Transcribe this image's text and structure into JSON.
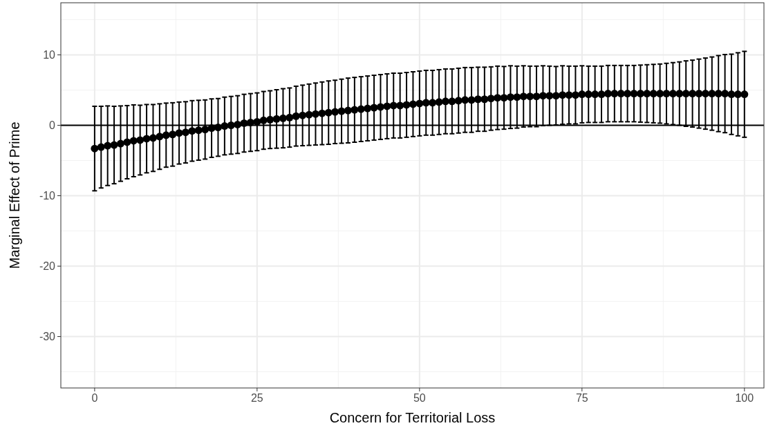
{
  "chart_data": {
    "type": "scatter",
    "xlabel": "Concern for Territorial Loss",
    "ylabel": "Marginal Effect of Prime",
    "xlim": [
      -5.2,
      103
    ],
    "xticks": [
      0,
      25,
      50,
      75,
      100
    ],
    "ylim": [
      -37.3,
      17.4
    ],
    "yticks": [
      -30,
      -20,
      -10,
      0,
      10
    ],
    "grid": true,
    "marker": "circle",
    "ref_lines": [
      {
        "axis": "y",
        "value": 0,
        "color": "#000000"
      }
    ],
    "series": [
      {
        "color": "#000000",
        "x": [
          0,
          1,
          2,
          3,
          4,
          5,
          6,
          7,
          8,
          9,
          10,
          11,
          12,
          13,
          14,
          15,
          16,
          17,
          18,
          19,
          20,
          21,
          22,
          23,
          24,
          25,
          26,
          27,
          28,
          29,
          30,
          31,
          32,
          33,
          34,
          35,
          36,
          37,
          38,
          39,
          40,
          41,
          42,
          43,
          44,
          45,
          46,
          47,
          48,
          49,
          50,
          51,
          52,
          53,
          54,
          55,
          56,
          57,
          58,
          59,
          60,
          61,
          62,
          63,
          64,
          65,
          66,
          67,
          68,
          69,
          70,
          71,
          72,
          73,
          74,
          75,
          76,
          77,
          78,
          79,
          80,
          81,
          82,
          83,
          84,
          85,
          86,
          87,
          88,
          89,
          90,
          91,
          92,
          93,
          94,
          95,
          96,
          97,
          98,
          99,
          100
        ],
        "values": [
          -3.3,
          -3.1,
          -2.9,
          -2.8,
          -2.6,
          -2.4,
          -2.2,
          -2.1,
          -1.9,
          -1.8,
          -1.6,
          -1.4,
          -1.3,
          -1.1,
          -1.0,
          -0.8,
          -0.7,
          -0.6,
          -0.4,
          -0.3,
          -0.1,
          0.0,
          0.1,
          0.3,
          0.4,
          0.5,
          0.7,
          0.8,
          0.9,
          1.0,
          1.1,
          1.3,
          1.4,
          1.5,
          1.6,
          1.7,
          1.8,
          1.9,
          2.0,
          2.1,
          2.2,
          2.3,
          2.4,
          2.5,
          2.6,
          2.7,
          2.8,
          2.8,
          2.9,
          3.0,
          3.1,
          3.2,
          3.2,
          3.3,
          3.4,
          3.4,
          3.5,
          3.6,
          3.6,
          3.7,
          3.7,
          3.8,
          3.9,
          3.9,
          4.0,
          4.0,
          4.1,
          4.1,
          4.1,
          4.2,
          4.2,
          4.2,
          4.3,
          4.3,
          4.3,
          4.4,
          4.4,
          4.4,
          4.4,
          4.5,
          4.5,
          4.5,
          4.5,
          4.5,
          4.5,
          4.5,
          4.5,
          4.5,
          4.5,
          4.5,
          4.5,
          4.5,
          4.5,
          4.5,
          4.5,
          4.5,
          4.5,
          4.5,
          4.4,
          4.4,
          4.4
        ],
        "errors": [
          6.0,
          5.8,
          5.65,
          5.5,
          5.35,
          5.2,
          5.1,
          4.95,
          4.85,
          4.75,
          4.65,
          4.55,
          4.5,
          4.4,
          4.35,
          4.3,
          4.25,
          4.2,
          4.15,
          4.1,
          4.1,
          4.1,
          4.1,
          4.1,
          4.1,
          4.1,
          4.1,
          4.1,
          4.15,
          4.2,
          4.2,
          4.25,
          4.3,
          4.35,
          4.4,
          4.45,
          4.5,
          4.5,
          4.55,
          4.6,
          4.6,
          4.6,
          4.6,
          4.6,
          4.6,
          4.6,
          4.6,
          4.6,
          4.6,
          4.6,
          4.6,
          4.6,
          4.6,
          4.6,
          4.6,
          4.6,
          4.6,
          4.6,
          4.6,
          4.55,
          4.55,
          4.5,
          4.5,
          4.45,
          4.45,
          4.4,
          4.35,
          4.3,
          4.3,
          4.25,
          4.2,
          4.15,
          4.15,
          4.1,
          4.1,
          4.05,
          4.0,
          4.0,
          4.0,
          4.0,
          4.0,
          4.0,
          4.0,
          4.0,
          4.05,
          4.1,
          4.15,
          4.2,
          4.3,
          4.4,
          4.5,
          4.65,
          4.75,
          4.9,
          5.05,
          5.2,
          5.4,
          5.55,
          5.7,
          5.9,
          6.1
        ]
      }
    ]
  }
}
